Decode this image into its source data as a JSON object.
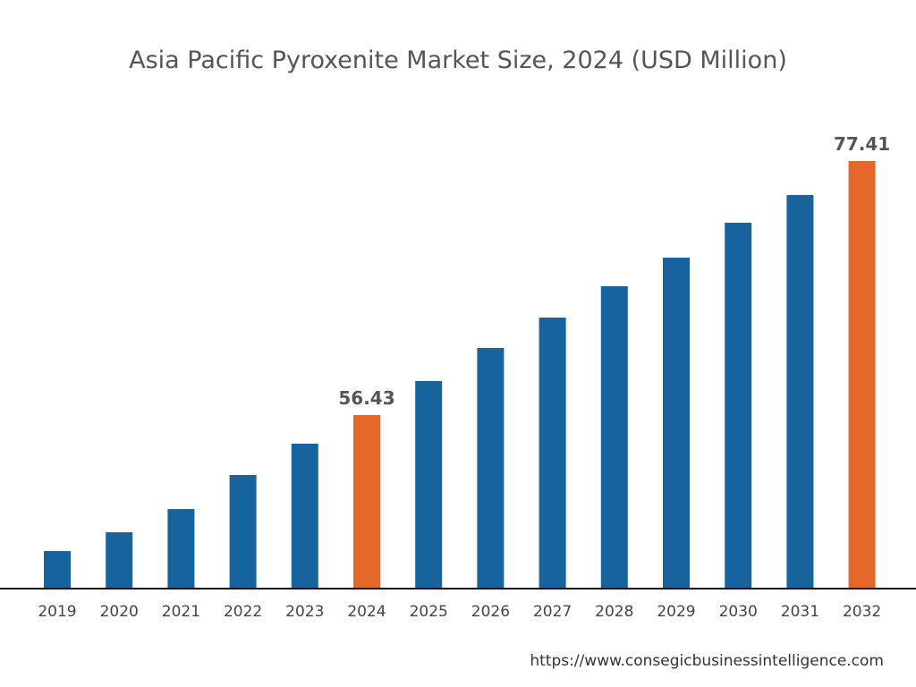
{
  "chart_data": {
    "type": "bar",
    "title": "Asia Pacific Pyroxenite Market Size, 2024 (USD Million)",
    "xlabel": "",
    "ylabel": "",
    "categories": [
      "2019",
      "2020",
      "2021",
      "2022",
      "2023",
      "2024",
      "2025",
      "2026",
      "2027",
      "2028",
      "2029",
      "2030",
      "2031",
      "2032"
    ],
    "values": [
      45.2,
      46.75,
      48.67,
      51.48,
      54.07,
      56.43,
      59.24,
      61.97,
      64.48,
      67.07,
      69.43,
      72.31,
      74.6,
      77.41
    ],
    "data_labels": {
      "2024": "56.43",
      "2032": "77.41"
    },
    "highlighted": [
      "2024",
      "2032"
    ],
    "ylim": [
      42.1,
      80
    ],
    "grid": false,
    "y_axis_visible": false,
    "colors": {
      "bar": "#17639e",
      "highlight": "#e5682a",
      "axis": "#111111",
      "label": "#444444"
    }
  },
  "source": "https://www.consegicbusinessintelligence.com"
}
